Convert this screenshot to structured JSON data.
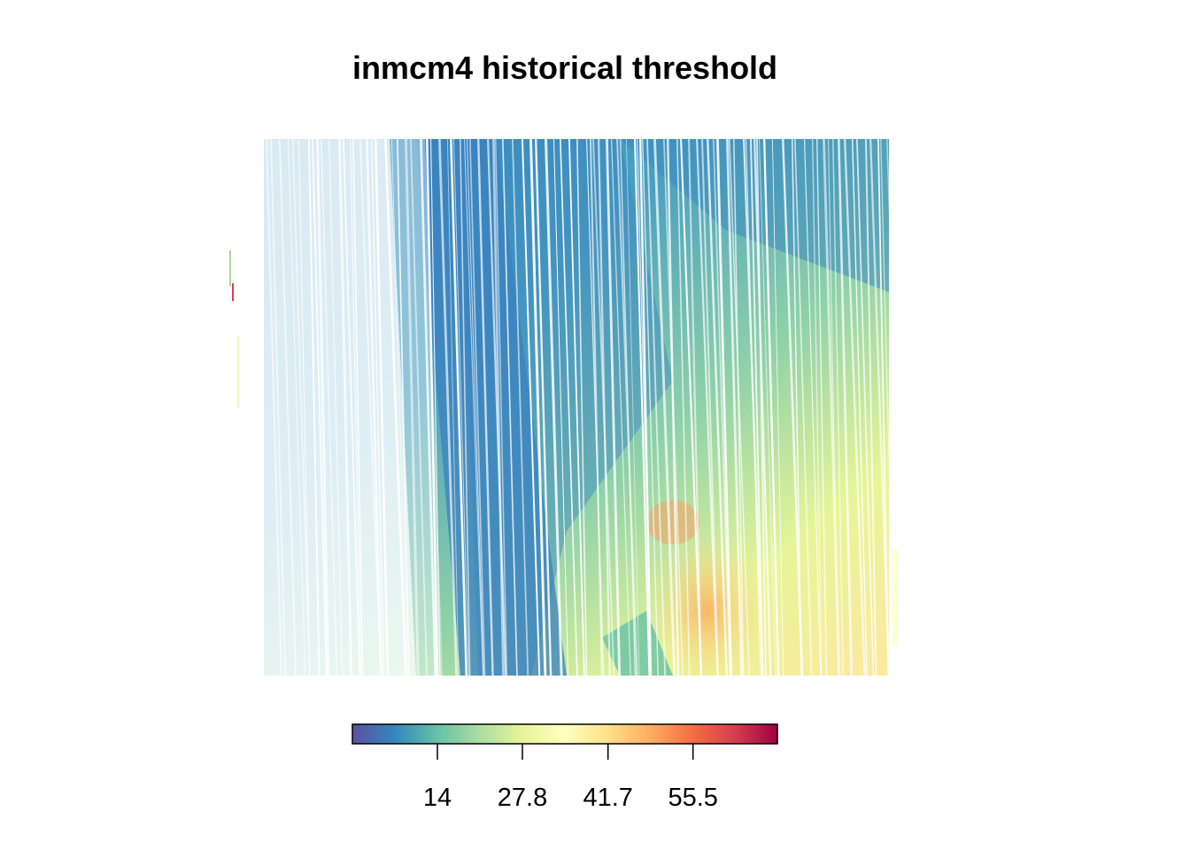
{
  "chart_data": {
    "type": "heatmap",
    "title": "inmcm4 historical threshold",
    "xlabel": "",
    "ylabel": "",
    "grid": false,
    "legend": "bottom",
    "colorbar": {
      "range": [
        0.2,
        69.2
      ],
      "ticks": [
        14,
        27.8,
        41.7,
        55.5
      ],
      "tick_labels": [
        "14",
        "27.8",
        "41.7",
        "55.5"
      ],
      "palette": [
        "#5e4fa2",
        "#3288bd",
        "#66c2a5",
        "#abdda4",
        "#e6f598",
        "#ffffbf",
        "#fee08b",
        "#fdae61",
        "#f46d43",
        "#d53e4f",
        "#9e0142"
      ]
    }
  }
}
